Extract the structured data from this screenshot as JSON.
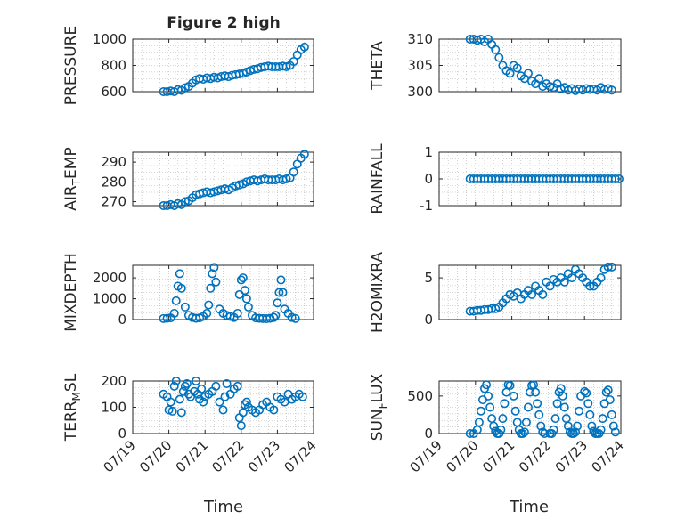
{
  "figure": {
    "title": "Figure 2 high",
    "xlabel": "Time"
  },
  "x_ticks": [
    "07/19",
    "07/20",
    "07/21",
    "07/22",
    "07/23",
    "07/24"
  ],
  "colors": {
    "marker": "#0072BD",
    "axis": "#262626",
    "grid": "#b0b0b0"
  },
  "chart_data": [
    {
      "type": "scatter",
      "ylabel": "PRESSURE",
      "ylim": [
        600,
        1000
      ],
      "yticks": [
        600,
        800,
        1000
      ],
      "x": [
        0.85,
        0.95,
        1.05,
        1.15,
        1.25,
        1.35,
        1.45,
        1.55,
        1.65,
        1.75,
        1.85,
        1.95,
        2.05,
        2.15,
        2.25,
        2.35,
        2.45,
        2.55,
        2.65,
        2.75,
        2.85,
        2.95,
        3.05,
        3.15,
        3.25,
        3.35,
        3.45,
        3.55,
        3.65,
        3.75,
        3.85,
        3.95,
        4.05,
        4.15,
        4.25,
        4.35,
        4.45,
        4.55,
        4.65,
        4.75
      ],
      "y": [
        600,
        600,
        605,
        600,
        615,
        610,
        630,
        640,
        665,
        690,
        700,
        695,
        705,
        700,
        710,
        705,
        715,
        720,
        715,
        725,
        730,
        735,
        740,
        750,
        760,
        770,
        775,
        785,
        790,
        795,
        790,
        790,
        790,
        795,
        790,
        800,
        830,
        880,
        920,
        940
      ]
    },
    {
      "type": "scatter",
      "ylabel": "THETA",
      "ylim": [
        300,
        310
      ],
      "yticks": [
        300,
        305,
        310
      ],
      "x": [
        0.85,
        0.95,
        1.05,
        1.15,
        1.25,
        1.35,
        1.45,
        1.55,
        1.65,
        1.75,
        1.85,
        1.95,
        2.05,
        2.15,
        2.25,
        2.35,
        2.45,
        2.55,
        2.65,
        2.75,
        2.85,
        2.95,
        3.05,
        3.15,
        3.25,
        3.35,
        3.45,
        3.55,
        3.65,
        3.75,
        3.85,
        3.95,
        4.05,
        4.15,
        4.25,
        4.35,
        4.45,
        4.55,
        4.65,
        4.75
      ],
      "y": [
        310,
        310,
        309.8,
        310,
        309.5,
        310,
        309,
        308,
        306.5,
        305,
        304,
        303.5,
        305,
        304.5,
        303,
        302.5,
        303.5,
        302,
        301.5,
        302.5,
        301,
        301.5,
        301,
        300.8,
        301.5,
        300.5,
        300.8,
        300.3,
        300.6,
        300.2,
        300.5,
        300.3,
        300.6,
        300.4,
        300.5,
        300.3,
        300.8,
        300.4,
        300.6,
        300.3
      ]
    },
    {
      "type": "scatter",
      "ylabel": "AIR_TEMP",
      "ylim": [
        268,
        295
      ],
      "yticks": [
        270,
        280,
        290
      ],
      "x": [
        0.85,
        0.95,
        1.05,
        1.15,
        1.25,
        1.35,
        1.45,
        1.55,
        1.65,
        1.75,
        1.85,
        1.95,
        2.05,
        2.15,
        2.25,
        2.35,
        2.45,
        2.55,
        2.65,
        2.75,
        2.85,
        2.95,
        3.05,
        3.15,
        3.25,
        3.35,
        3.45,
        3.55,
        3.65,
        3.75,
        3.85,
        3.95,
        4.05,
        4.15,
        4.25,
        4.35,
        4.45,
        4.55,
        4.65,
        4.75
      ],
      "y": [
        268,
        268,
        268.5,
        268,
        269,
        268.5,
        270,
        270.5,
        272,
        273.5,
        274,
        274.5,
        275,
        274.5,
        275,
        275.5,
        276,
        276.5,
        276,
        277,
        278,
        278.5,
        279,
        280,
        280.5,
        281,
        280.5,
        281,
        281.5,
        281,
        281,
        281,
        281.5,
        281,
        281.5,
        282,
        285,
        289,
        292,
        294
      ]
    },
    {
      "type": "scatter",
      "ylabel": "RAINFALL",
      "ylim": [
        -1,
        1
      ],
      "yticks": [
        -1,
        0,
        1
      ],
      "x": [
        0.85,
        0.95,
        1.05,
        1.15,
        1.25,
        1.35,
        1.45,
        1.55,
        1.65,
        1.75,
        1.85,
        1.95,
        2.05,
        2.15,
        2.25,
        2.35,
        2.45,
        2.55,
        2.65,
        2.75,
        2.85,
        2.95,
        3.05,
        3.15,
        3.25,
        3.35,
        3.45,
        3.55,
        3.65,
        3.75,
        3.85,
        3.95,
        4.05,
        4.15,
        4.25,
        4.35,
        4.45,
        4.55,
        4.65,
        4.75,
        4.85,
        4.95
      ],
      "y": [
        0,
        0,
        0,
        0,
        0,
        0,
        0,
        0,
        0,
        0,
        0,
        0,
        0,
        0,
        0,
        0,
        0,
        0,
        0,
        0,
        0,
        0,
        0,
        0,
        0,
        0,
        0,
        0,
        0,
        0,
        0,
        0,
        0,
        0,
        0,
        0,
        0,
        0,
        0,
        0,
        0,
        0
      ]
    },
    {
      "type": "scatter",
      "ylabel": "MIXDEPTH",
      "ylim": [
        0,
        2600
      ],
      "yticks": [
        0,
        1000,
        2000
      ],
      "x": [
        0.85,
        0.95,
        1.05,
        1.15,
        1.2,
        1.25,
        1.3,
        1.35,
        1.45,
        1.55,
        1.65,
        1.75,
        1.85,
        1.95,
        2.05,
        2.1,
        2.15,
        2.2,
        2.25,
        2.3,
        2.4,
        2.5,
        2.6,
        2.7,
        2.8,
        2.9,
        2.95,
        3.0,
        3.05,
        3.1,
        3.15,
        3.2,
        3.3,
        3.4,
        3.5,
        3.6,
        3.7,
        3.8,
        3.9,
        3.95,
        4.0,
        4.05,
        4.1,
        4.15,
        4.2,
        4.3,
        4.4,
        4.5
      ],
      "y": [
        50,
        60,
        80,
        300,
        900,
        1600,
        2200,
        1500,
        600,
        200,
        100,
        60,
        80,
        150,
        300,
        700,
        1500,
        2200,
        2500,
        1800,
        500,
        300,
        200,
        150,
        100,
        300,
        1200,
        1900,
        2000,
        1400,
        1000,
        600,
        200,
        80,
        60,
        50,
        40,
        60,
        100,
        200,
        800,
        1300,
        1900,
        1300,
        500,
        300,
        100,
        50
      ]
    },
    {
      "type": "scatter",
      "ylabel": "H2OMIXRA",
      "ylim": [
        0,
        6.5
      ],
      "yticks": [
        0,
        5
      ],
      "x": [
        0.85,
        0.95,
        1.05,
        1.15,
        1.25,
        1.35,
        1.45,
        1.55,
        1.65,
        1.75,
        1.85,
        1.95,
        2.05,
        2.15,
        2.25,
        2.35,
        2.45,
        2.55,
        2.65,
        2.75,
        2.85,
        2.95,
        3.05,
        3.15,
        3.25,
        3.35,
        3.45,
        3.55,
        3.65,
        3.75,
        3.85,
        3.95,
        4.05,
        4.15,
        4.25,
        4.35,
        4.45,
        4.55,
        4.65,
        4.75
      ],
      "y": [
        1,
        1,
        1.1,
        1.1,
        1.2,
        1.2,
        1.3,
        1.3,
        1.5,
        2,
        2.5,
        3,
        2.8,
        3.2,
        2.5,
        3,
        3.5,
        3,
        4,
        3.5,
        3,
        4.5,
        4,
        4.8,
        4.5,
        5,
        4.5,
        5.5,
        5,
        6,
        5.5,
        5,
        4.5,
        4,
        4,
        4.5,
        5,
        6,
        6.3,
        6.3
      ]
    },
    {
      "type": "scatter",
      "ylabel": "TERR_MSL",
      "ylim": [
        0,
        200
      ],
      "yticks": [
        0,
        100,
        200
      ],
      "x": [
        0.85,
        0.95,
        1.0,
        1.05,
        1.1,
        1.15,
        1.2,
        1.3,
        1.35,
        1.4,
        1.45,
        1.5,
        1.55,
        1.6,
        1.7,
        1.75,
        1.8,
        1.85,
        1.9,
        1.95,
        2.0,
        2.1,
        2.2,
        2.3,
        2.4,
        2.5,
        2.55,
        2.6,
        2.7,
        2.8,
        2.9,
        2.95,
        3.0,
        3.05,
        3.1,
        3.15,
        3.2,
        3.3,
        3.4,
        3.5,
        3.6,
        3.7,
        3.8,
        3.9,
        4.0,
        4.1,
        4.2,
        4.3,
        4.4,
        4.5,
        4.6,
        4.7
      ],
      "y": [
        150,
        140,
        90,
        120,
        85,
        180,
        200,
        130,
        80,
        160,
        180,
        190,
        150,
        140,
        160,
        200,
        150,
        130,
        170,
        120,
        140,
        150,
        160,
        180,
        120,
        90,
        140,
        190,
        150,
        170,
        180,
        60,
        30,
        80,
        110,
        120,
        100,
        90,
        80,
        90,
        110,
        120,
        100,
        90,
        140,
        130,
        120,
        150,
        130,
        140,
        150,
        140
      ]
    },
    {
      "type": "scatter",
      "ylabel": "SUN_FLUX",
      "ylim": [
        0,
        700
      ],
      "yticks": [
        0,
        500
      ],
      "x": [
        0.85,
        0.95,
        1.05,
        1.1,
        1.15,
        1.2,
        1.25,
        1.3,
        1.35,
        1.4,
        1.45,
        1.5,
        1.55,
        1.6,
        1.65,
        1.7,
        1.75,
        1.8,
        1.85,
        1.9,
        1.95,
        2.05,
        2.1,
        2.15,
        2.2,
        2.25,
        2.3,
        2.35,
        2.4,
        2.45,
        2.5,
        2.55,
        2.6,
        2.65,
        2.7,
        2.75,
        2.8,
        2.85,
        2.9,
        3.05,
        3.1,
        3.15,
        3.2,
        3.25,
        3.3,
        3.35,
        3.4,
        3.45,
        3.5,
        3.55,
        3.6,
        3.65,
        3.7,
        3.75,
        3.8,
        3.85,
        3.9,
        4.0,
        4.05,
        4.1,
        4.15,
        4.2,
        4.25,
        4.3,
        4.35,
        4.4,
        4.45,
        4.5,
        4.55,
        4.6,
        4.65,
        4.7,
        4.75,
        4.8,
        4.85
      ],
      "y": [
        0,
        0,
        50,
        150,
        300,
        450,
        600,
        650,
        500,
        350,
        200,
        100,
        30,
        0,
        0,
        50,
        200,
        400,
        550,
        650,
        640,
        500,
        300,
        150,
        50,
        0,
        0,
        20,
        150,
        350,
        550,
        640,
        650,
        550,
        400,
        250,
        100,
        20,
        0,
        0,
        0,
        50,
        200,
        400,
        550,
        600,
        500,
        350,
        200,
        100,
        20,
        0,
        0,
        20,
        100,
        300,
        500,
        560,
        540,
        400,
        250,
        100,
        30,
        0,
        0,
        0,
        50,
        200,
        400,
        550,
        580,
        450,
        250,
        100,
        20
      ]
    }
  ]
}
